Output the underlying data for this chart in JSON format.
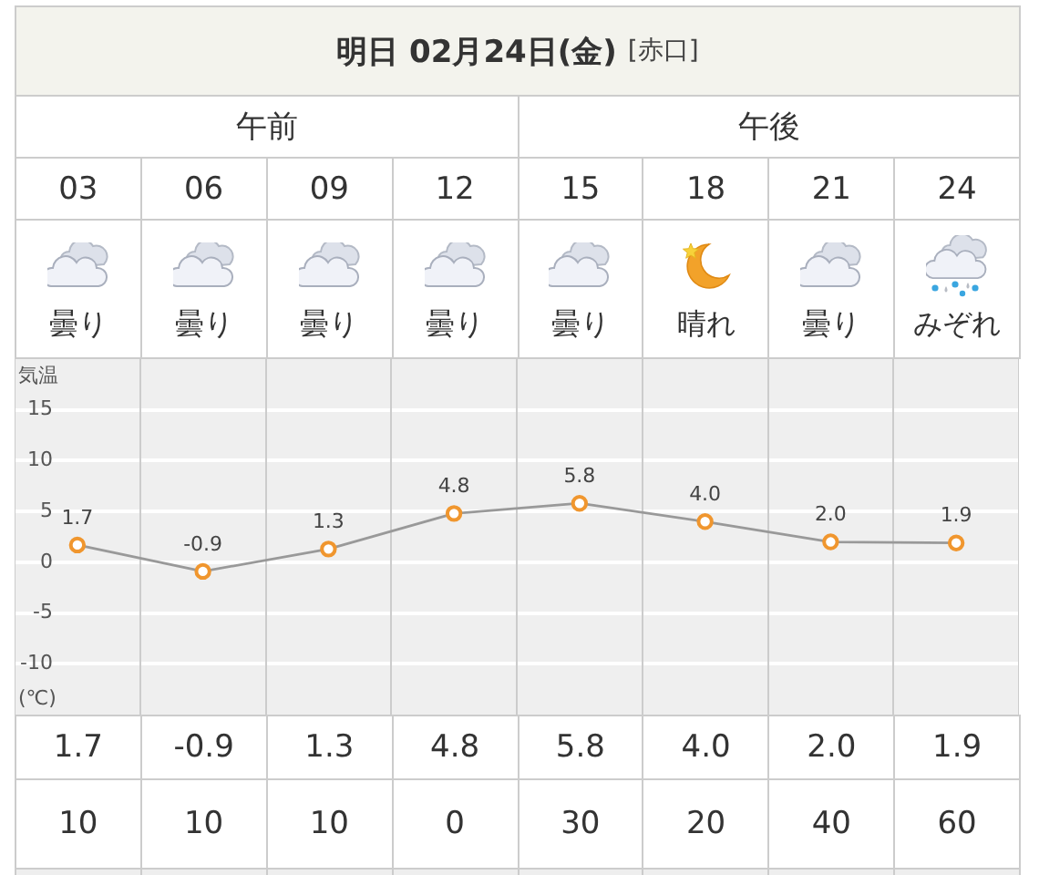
{
  "chart_data": {
    "type": "line",
    "title": "明日 02月24日(金)",
    "subtitle": "[赤口]",
    "ylabel": "気温",
    "categories": [
      "03",
      "06",
      "09",
      "12",
      "15",
      "18",
      "21",
      "24"
    ],
    "series": [
      {
        "color": "#999999",
        "colors": [
          "#f0962e",
          "#f0962e",
          "#f0962e",
          "#f0962e",
          "#f0962e",
          "#f0962e",
          "#f0962e",
          "#f0962e"
        ],
        "values": [
          1.7,
          -0.9,
          1.3,
          4.8,
          5.8,
          4.0,
          2.0,
          1.9
        ],
        "value_labels": [
          "1.7",
          "-0.9",
          "1.3",
          "4.8",
          "5.8",
          "4.0",
          "2.0",
          "1.9"
        ]
      }
    ],
    "ylim": [
      -15,
      20
    ],
    "yticks": [
      -10,
      -5,
      0,
      5,
      10,
      15
    ],
    "grid": true,
    "marker": "circle",
    "annotations": [
      "曇り",
      "曇り",
      "曇り",
      "曇り",
      "曇り",
      "晴れ",
      "曇り",
      "みぞれ",
      "10",
      "10",
      "10",
      "0",
      "30",
      "20",
      "40",
      "60",
      "午前",
      "午後",
      "(℃)"
    ]
  }
}
